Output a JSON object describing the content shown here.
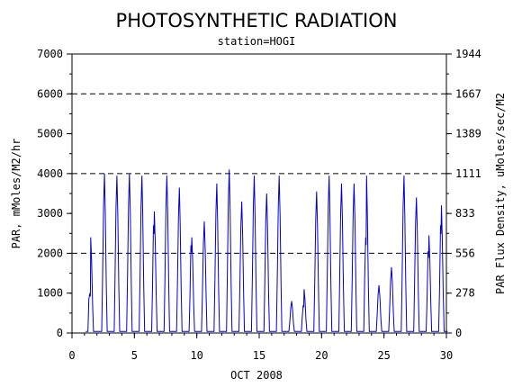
{
  "chart_data": {
    "type": "line",
    "title": "PHOTOSYNTHETIC RADIATION",
    "subtitle": "station=HOGI",
    "xlabel": "OCT 2008",
    "ylabel": "PAR, mMoles/M2/hr",
    "ylabel_right": "PAR Flux Density, uMoles/sec/M2",
    "xlim": [
      0,
      30
    ],
    "ylim": [
      0,
      7000
    ],
    "x_ticks": [
      "0",
      "5",
      "10",
      "15",
      "20",
      "25",
      "30"
    ],
    "y_ticks": [
      "0",
      "1000",
      "2000",
      "3000",
      "4000",
      "5000",
      "6000",
      "7000"
    ],
    "y_ticks_right": [
      "0",
      "278",
      "556",
      "833",
      "1111",
      "1389",
      "1667",
      "1944"
    ],
    "gridlines_y": [
      2000,
      4000,
      6000
    ],
    "series_color": "#0000cc",
    "daily_peaks": [
      {
        "day": 1.5,
        "peak": 2400,
        "shoulder": 1000
      },
      {
        "day": 2.6,
        "peak": 4000
      },
      {
        "day": 3.6,
        "peak": 3950
      },
      {
        "day": 4.6,
        "peak": 4000
      },
      {
        "day": 5.6,
        "peak": 3950
      },
      {
        "day": 6.6,
        "peak": 3050,
        "shoulder": 2700
      },
      {
        "day": 7.6,
        "peak": 3950
      },
      {
        "day": 8.6,
        "peak": 3650
      },
      {
        "day": 9.6,
        "peak": 2400,
        "shoulder": 2200
      },
      {
        "day": 10.6,
        "peak": 2800
      },
      {
        "day": 11.6,
        "peak": 3750
      },
      {
        "day": 12.6,
        "peak": 4100
      },
      {
        "day": 13.6,
        "peak": 3300
      },
      {
        "day": 14.6,
        "peak": 3950
      },
      {
        "day": 15.6,
        "peak": 3500
      },
      {
        "day": 16.6,
        "peak": 3950
      },
      {
        "day": 17.6,
        "peak": 800
      },
      {
        "day": 18.6,
        "peak": 1100,
        "shoulder": 700
      },
      {
        "day": 19.6,
        "peak": 3550
      },
      {
        "day": 20.6,
        "peak": 3950
      },
      {
        "day": 21.6,
        "peak": 3750
      },
      {
        "day": 22.6,
        "peak": 3750
      },
      {
        "day": 23.6,
        "peak": 3950,
        "shoulder": 2400
      },
      {
        "day": 24.6,
        "peak": 1200
      },
      {
        "day": 25.6,
        "peak": 1650
      },
      {
        "day": 26.6,
        "peak": 3950
      },
      {
        "day": 27.6,
        "peak": 3400
      },
      {
        "day": 28.6,
        "peak": 2450,
        "shoulder": 2050
      },
      {
        "day": 29.6,
        "peak": 3200,
        "shoulder": 2700
      }
    ]
  }
}
